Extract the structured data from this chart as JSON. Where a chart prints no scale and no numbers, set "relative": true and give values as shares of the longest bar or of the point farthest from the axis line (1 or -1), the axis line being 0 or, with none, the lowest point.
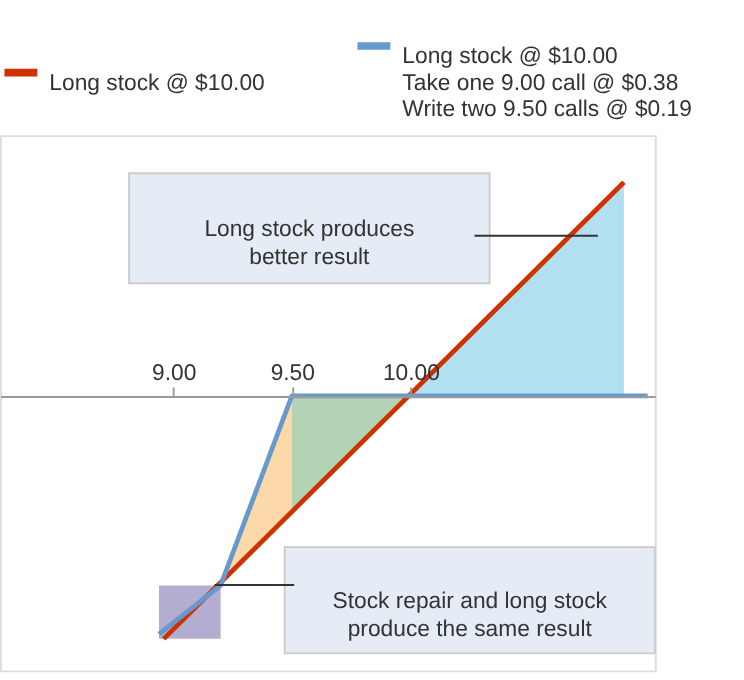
{
  "chart_data": {
    "type": "line",
    "relative": true,
    "legend": "top",
    "grid": false,
    "xlim": [
      8.27,
      11.03
    ],
    "xticks": [
      {
        "value": 9,
        "label": "9.00"
      },
      {
        "value": 9.5,
        "label": "9.50"
      },
      {
        "value": 10,
        "label": "10.00"
      }
    ],
    "series": [
      {
        "type": "area",
        "color": "#b4d3b4",
        "x": [
          9.5,
          10.0
        ],
        "values": [
          -0.49,
          0
        ]
      },
      {
        "type": "area",
        "color": "#b3e0f0",
        "x": [
          10.0,
          10.9
        ],
        "values": [
          0,
          0.88
        ]
      },
      {
        "name": "Long stock @ $10.00",
        "color": "#cc3300",
        "x": [
          8.96,
          10.9
        ],
        "values": [
          -1,
          0.88
        ]
      },
      {
        "name": "Long stock @ $10.00\nTake one 9.00 call @ $0.38\nWrite two 9.50 calls @ $0.19",
        "color": "#6699cc",
        "x": [
          8.94,
          9.2,
          9.5,
          11.0
        ],
        "values": [
          -0.98,
          -0.78,
          0,
          0
        ]
      }
    ],
    "annotations": [
      "Long stock produces\nbetter result",
      "Stock repair and long stock\nproduce the same result"
    ]
  }
}
